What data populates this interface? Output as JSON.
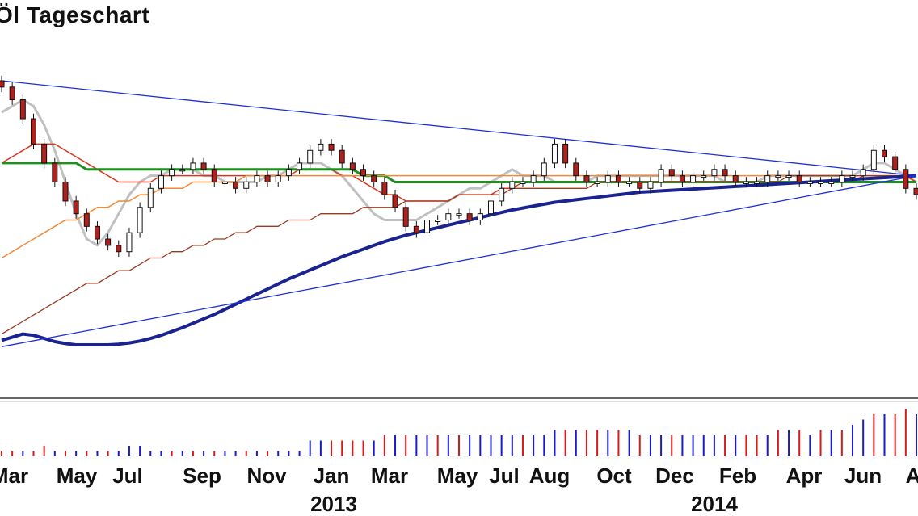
{
  "title": "Öl Tageschart",
  "colors": {
    "up_candle": "#ffffff",
    "down_candle": "#b0201d",
    "candle_outline": "#111111",
    "sma_gray": "#c0c0c0",
    "sma_green": "#1f8f1f",
    "sma_red": "#d8371f",
    "sma_orange": "#f08a3a",
    "sma_brown": "#9a3a20",
    "sma_navy": "#1a2390",
    "trendline": "#1f2fd8",
    "volume_up": "#1a1ad0",
    "volume_down": "#d81a1a"
  },
  "chart_data": {
    "type": "candlestick",
    "title": "Öl Tageschart",
    "x_tick_labels": [
      "Mar",
      "May",
      "Jul",
      "Sep",
      "Nov",
      "Jan",
      "Mar",
      "May",
      "Jul",
      "Aug",
      "Oct",
      "Dec",
      "Feb",
      "Apr",
      "Jun",
      "A"
    ],
    "year_labels": [
      "2013",
      "2014"
    ],
    "grid": false,
    "panels": [
      "price",
      "volume"
    ],
    "price_series": {
      "close": [
        113,
        111,
        108,
        104,
        101,
        98,
        95,
        93,
        91,
        89,
        88,
        87,
        90,
        94,
        97,
        99,
        100,
        100,
        101,
        100,
        98,
        98,
        97,
        98,
        99,
        98,
        99,
        100,
        101,
        103,
        104,
        103,
        101,
        100,
        99,
        98,
        96,
        94,
        91,
        90,
        92,
        92,
        93,
        93,
        92,
        93,
        95,
        97,
        98,
        98,
        99,
        101,
        104,
        101,
        99,
        98,
        98,
        99,
        98,
        98,
        97,
        98,
        100,
        99,
        98,
        99,
        99,
        100,
        99,
        98,
        98,
        98,
        99,
        99,
        99,
        98,
        98,
        98,
        98,
        99,
        99,
        100,
        103,
        102,
        100,
        97,
        96
      ],
      "moving_averages": [
        {
          "label": "",
          "color_key": "sma_gray",
          "values": [
            109,
            110,
            111,
            110,
            107,
            103,
            98,
            93,
            89,
            88,
            90,
            93,
            96,
            98,
            99,
            99,
            100,
            100,
            100,
            99,
            99,
            98,
            98,
            98,
            98,
            99,
            99,
            100,
            101,
            101,
            101,
            100,
            99,
            97,
            95,
            93,
            92,
            92,
            92,
            92,
            93,
            94,
            95,
            96,
            97,
            97,
            98,
            99,
            100,
            99,
            99,
            99,
            98,
            98,
            98,
            98,
            99,
            99,
            99,
            99,
            99,
            99,
            99,
            99,
            99,
            99,
            99,
            99,
            98,
            98,
            98,
            98,
            99,
            99,
            99,
            99,
            99,
            99,
            99,
            99,
            99,
            100,
            101,
            101,
            100,
            99,
            98
          ]
        },
        {
          "label": "",
          "color_key": "sma_red",
          "values": [
            101,
            102,
            103,
            104,
            104,
            104,
            103,
            102,
            101,
            100,
            99,
            98,
            98,
            98,
            98,
            99,
            99,
            99,
            99,
            99,
            99,
            99,
            99,
            99,
            99,
            99,
            99,
            99,
            100,
            100,
            100,
            100,
            99,
            99,
            98,
            97,
            96,
            96,
            95,
            95,
            95,
            95,
            95,
            96,
            96,
            96,
            96,
            97,
            97,
            98,
            98,
            98,
            98,
            98,
            98,
            98,
            98,
            98,
            98,
            98,
            98,
            98,
            98,
            98,
            98,
            98,
            98,
            98,
            98,
            98,
            98,
            98,
            98,
            98,
            98,
            98,
            98,
            98,
            98,
            98,
            98,
            99,
            99,
            99,
            99,
            99,
            98
          ]
        },
        {
          "label": "",
          "color_key": "sma_green",
          "values": [
            101,
            101,
            101,
            101,
            101,
            101,
            101,
            101,
            100,
            100,
            100,
            100,
            100,
            100,
            100,
            100,
            100,
            100,
            100,
            100,
            100,
            100,
            100,
            100,
            100,
            100,
            100,
            100,
            100,
            100,
            100,
            100,
            100,
            100,
            99,
            99,
            99,
            98,
            98,
            98,
            98,
            98,
            98,
            98,
            98,
            98,
            98,
            98,
            98,
            98,
            98,
            98,
            98,
            98,
            98,
            98,
            98,
            98,
            98,
            98,
            98,
            98,
            98,
            98,
            98,
            98,
            98,
            98,
            98,
            98,
            98,
            98,
            98,
            98,
            98,
            98,
            98,
            98,
            98,
            98,
            98,
            98,
            98,
            98,
            98,
            98,
            98
          ]
        },
        {
          "label": "",
          "color_key": "sma_orange",
          "values": [
            86,
            87,
            88,
            89,
            90,
            91,
            92,
            92,
            93,
            94,
            94,
            95,
            95,
            96,
            96,
            97,
            97,
            97,
            98,
            98,
            98,
            98,
            98,
            99,
            99,
            99,
            99,
            99,
            99,
            99,
            99,
            99,
            99,
            99,
            99,
            99,
            99,
            99,
            99,
            99,
            99,
            99,
            99,
            99,
            99,
            99,
            99,
            99,
            99,
            99,
            99,
            99,
            99,
            99,
            99,
            99,
            99,
            99,
            99,
            99,
            99,
            99,
            99,
            99,
            99,
            99,
            99,
            99,
            99,
            99,
            99,
            99,
            99,
            99,
            99,
            99,
            99,
            99,
            99,
            99,
            99,
            99,
            99,
            99,
            99,
            99,
            99
          ]
        },
        {
          "label": "",
          "color_key": "sma_brown",
          "values": [
            74,
            75,
            76,
            77,
            78,
            79,
            80,
            81,
            82,
            82,
            83,
            84,
            84,
            85,
            86,
            86,
            87,
            87,
            88,
            88,
            89,
            89,
            90,
            90,
            91,
            91,
            91,
            92,
            92,
            92,
            93,
            93,
            93,
            93,
            94,
            94,
            94,
            94,
            95,
            95,
            95,
            95,
            95,
            96,
            96,
            96,
            96,
            96,
            97,
            97,
            97,
            97,
            97,
            97,
            97,
            97,
            98,
            98,
            98,
            98,
            98,
            98,
            98,
            98,
            98,
            98,
            98,
            98,
            98,
            98,
            98,
            98,
            98,
            98,
            99,
            99,
            99,
            99,
            99,
            99,
            99,
            99,
            99,
            99,
            99,
            99,
            99
          ]
        },
        {
          "label": "",
          "color_key": "sma_navy",
          "values": [
            73,
            73.5,
            74,
            73.8,
            73.3,
            72.8,
            72.5,
            72.3,
            72.3,
            72.3,
            72.3,
            72.4,
            72.6,
            72.9,
            73.3,
            73.8,
            74.4,
            75,
            75.7,
            76.4,
            77.1,
            77.9,
            78.7,
            79.5,
            80.3,
            81.1,
            81.9,
            82.7,
            83.4,
            84.1,
            84.8,
            85.5,
            86.2,
            86.8,
            87.4,
            88,
            88.6,
            89.1,
            89.6,
            90,
            90.4,
            90.8,
            91.2,
            91.6,
            92,
            92.4,
            92.8,
            93.2,
            93.6,
            93.9,
            94.2,
            94.5,
            94.8,
            95,
            95.2,
            95.4,
            95.6,
            95.8,
            96,
            96.2,
            96.4,
            96.5,
            96.6,
            96.7,
            96.8,
            96.9,
            97,
            97.1,
            97.2,
            97.3,
            97.4,
            97.5,
            97.6,
            97.7,
            97.8,
            97.9,
            98,
            98.1,
            98.2,
            98.3,
            98.4,
            98.5,
            98.6,
            98.7,
            98.8,
            98.9,
            99
          ]
        }
      ],
      "trendlines": [
        {
          "from": [
            0,
            114
          ],
          "to": [
            86,
            99
          ]
        },
        {
          "from": [
            0,
            72
          ],
          "to": [
            86,
            99
          ]
        }
      ]
    },
    "volume": [
      1,
      1,
      1,
      1,
      2,
      1,
      1,
      1,
      1,
      1,
      1,
      1,
      2,
      2,
      1,
      1,
      1,
      1,
      1,
      1,
      1,
      1,
      1,
      1,
      1,
      1,
      1,
      1,
      1,
      3,
      3,
      3,
      3,
      3,
      3,
      3,
      4,
      4,
      4,
      4,
      4,
      4,
      4,
      4,
      4,
      4,
      4,
      4,
      4,
      4,
      4,
      4,
      5,
      5,
      5,
      5,
      5,
      5,
      5,
      5,
      4,
      4,
      4,
      4,
      4,
      4,
      4,
      4,
      4,
      4,
      4,
      4,
      4,
      5,
      5,
      5,
      4,
      5,
      5,
      5,
      6,
      7,
      8,
      8,
      8,
      9,
      8
    ],
    "volume_direction": [
      "d",
      "d",
      "u",
      "d",
      "d",
      "u",
      "d",
      "u",
      "d",
      "u",
      "d",
      "u",
      "u",
      "u",
      "u",
      "u",
      "d",
      "u",
      "d",
      "u",
      "d",
      "u",
      "u",
      "d",
      "u",
      "d",
      "u",
      "u",
      "u",
      "u",
      "u",
      "d",
      "d",
      "d",
      "d",
      "u",
      "d",
      "u",
      "d",
      "u",
      "u",
      "d",
      "u",
      "d",
      "u",
      "u",
      "u",
      "u",
      "u",
      "d",
      "u",
      "u",
      "u",
      "d",
      "u",
      "d",
      "d",
      "u",
      "d",
      "u",
      "d",
      "u",
      "u",
      "d",
      "u",
      "u",
      "u",
      "u",
      "d",
      "u",
      "d",
      "d",
      "u",
      "d",
      "u",
      "d",
      "u",
      "d",
      "u",
      "d",
      "u",
      "u",
      "d",
      "u",
      "d",
      "d",
      "u"
    ]
  }
}
